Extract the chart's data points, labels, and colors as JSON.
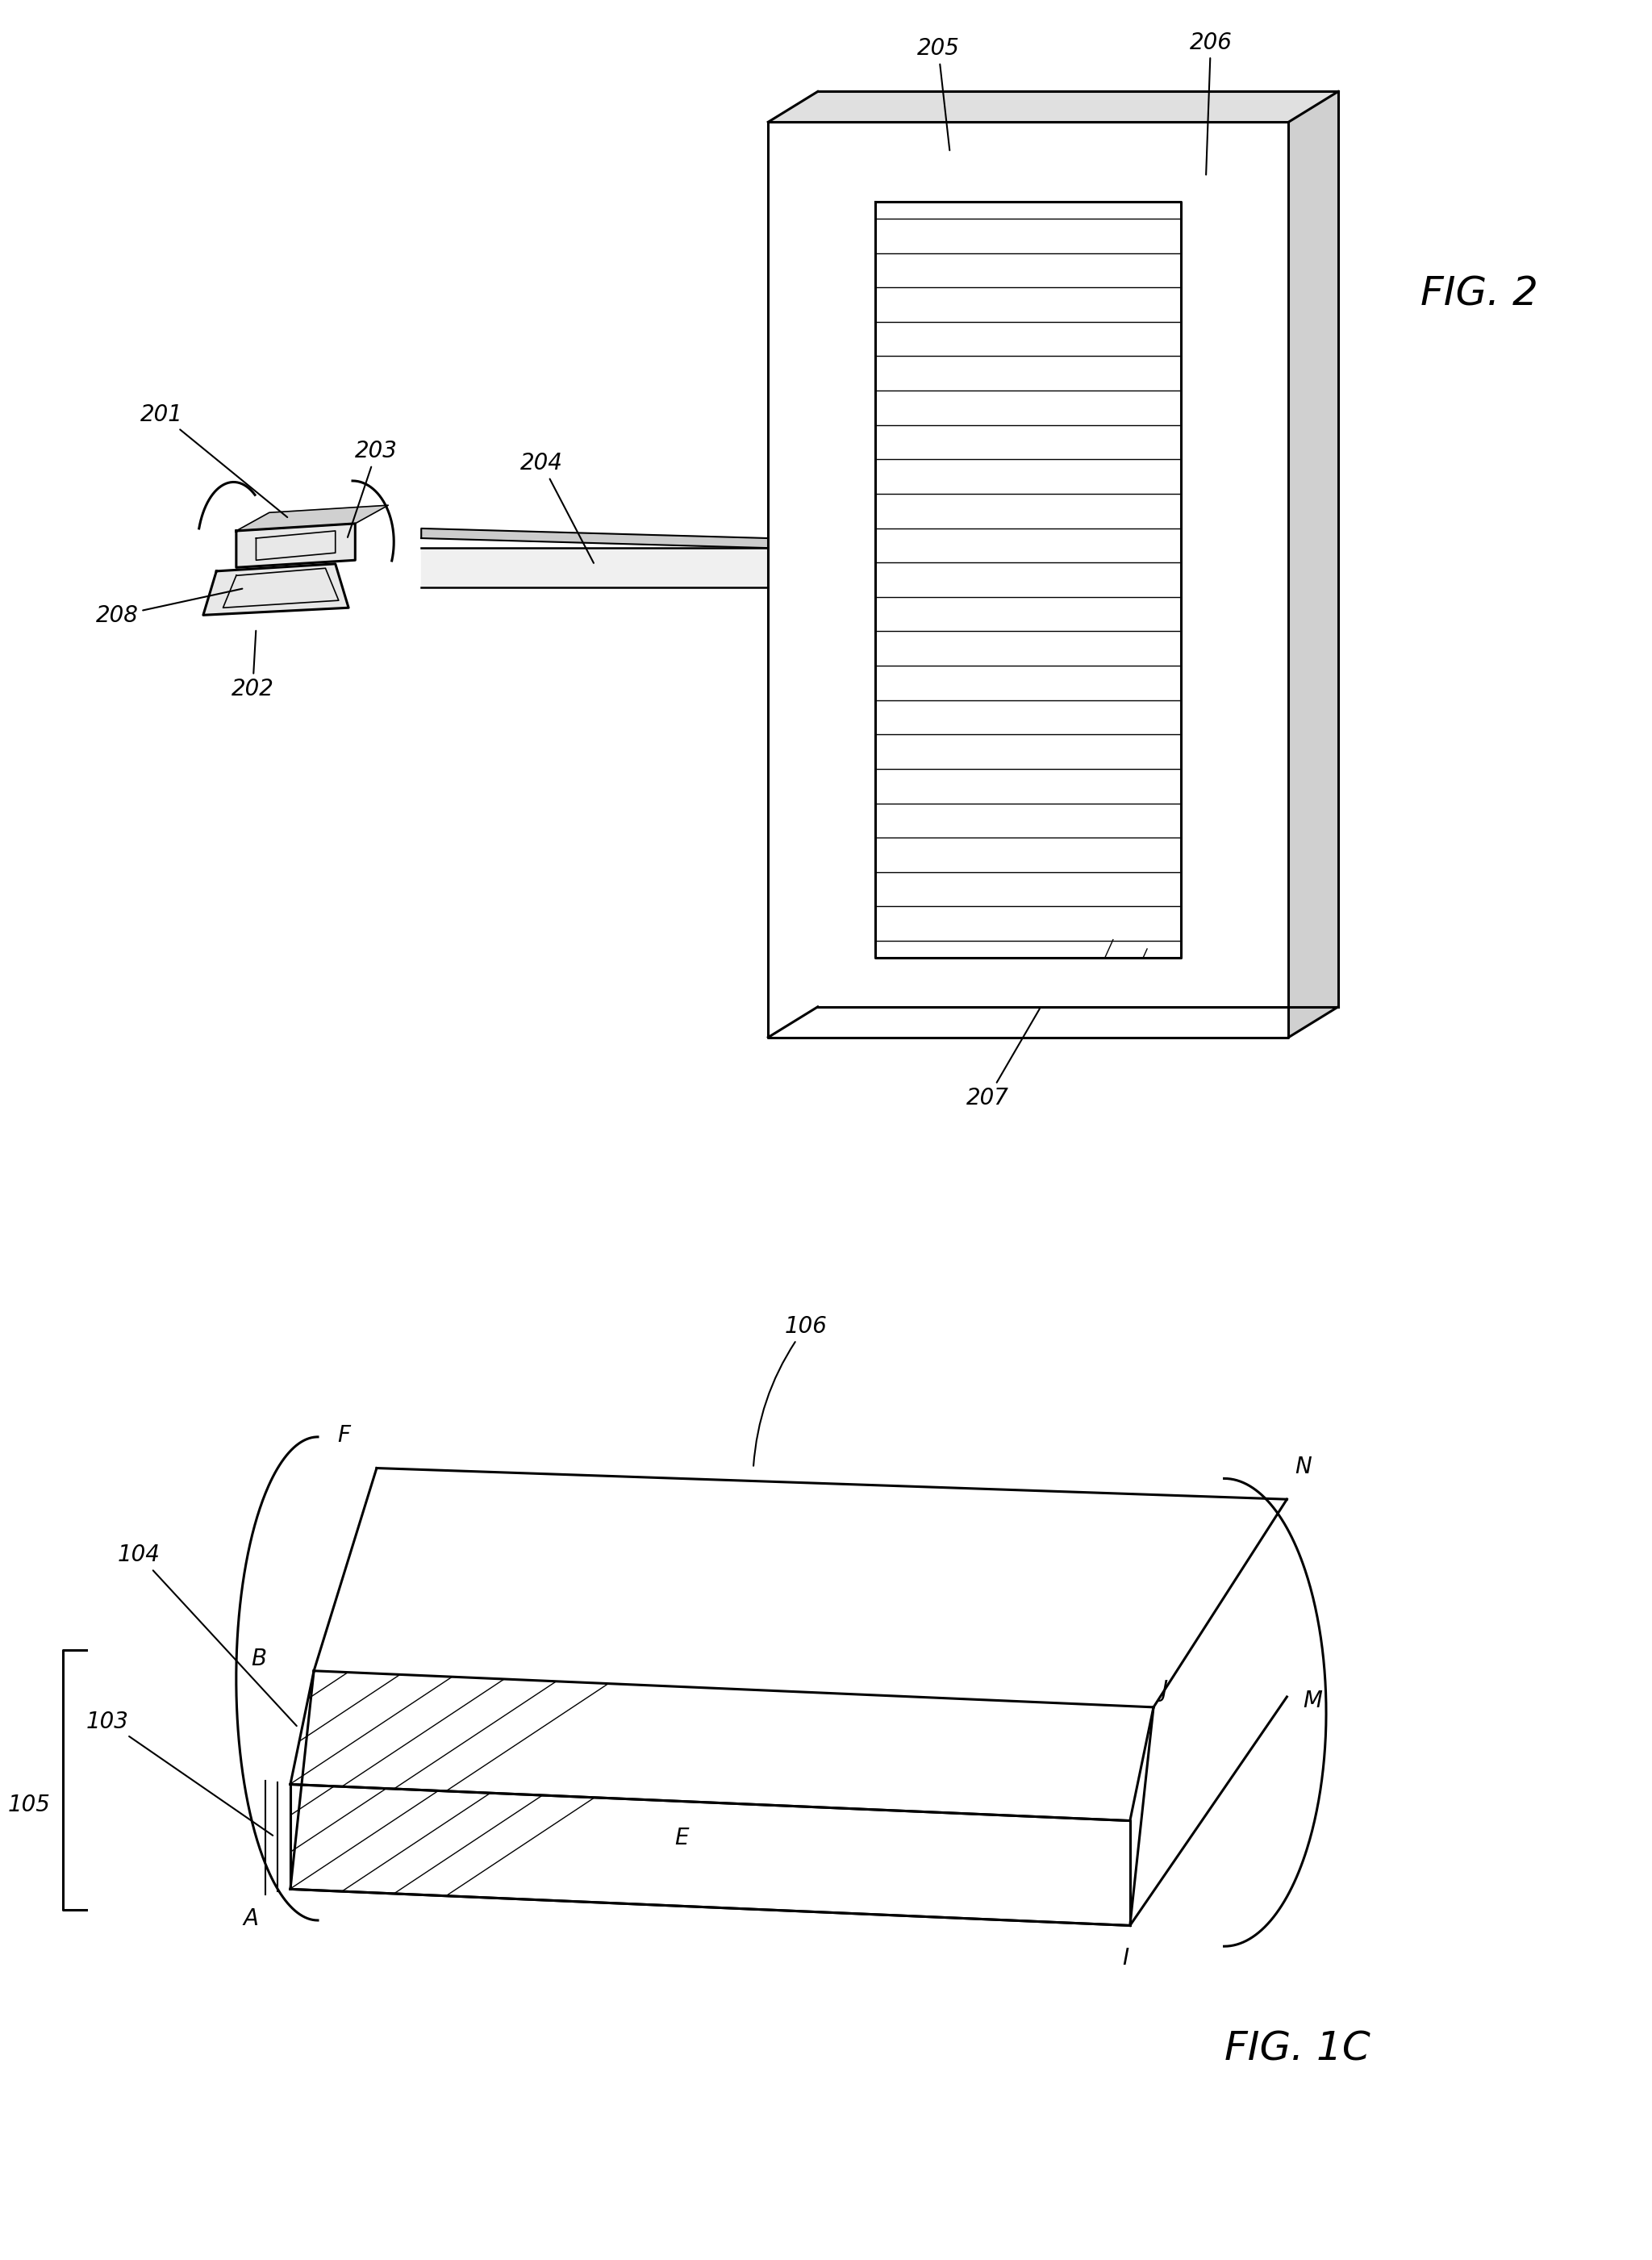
{
  "background_color": "#ffffff",
  "line_color": "#000000",
  "fig2": {
    "title": "FIG. 2",
    "frame": {
      "front_tl": [
        0.495,
        0.88
      ],
      "front_tr": [
        0.495,
        0.88
      ],
      "comment": "perspective tilted frame on right"
    }
  },
  "fig1c": {
    "title": "FIG. 1C"
  }
}
